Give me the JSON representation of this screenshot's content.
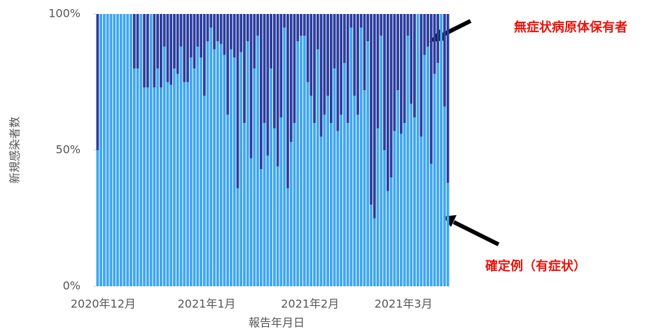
{
  "chart_data": {
    "type": "stacked_bar",
    "x_label": "報告年月日",
    "y_label": "新規感染者数",
    "categories": [
      "2020年12月",
      null,
      null,
      null,
      null,
      null,
      null,
      null,
      null,
      null,
      null,
      null,
      null,
      null,
      null,
      null,
      null,
      null,
      null,
      null,
      null,
      null,
      null,
      null,
      null,
      null,
      null,
      null,
      null,
      null,
      null,
      "2021年1月",
      null,
      null,
      null,
      null,
      null,
      null,
      null,
      null,
      null,
      null,
      null,
      null,
      null,
      null,
      null,
      null,
      null,
      null,
      null,
      null,
      null,
      null,
      null,
      null,
      null,
      null,
      null,
      null,
      null,
      null,
      "2021年2月",
      null,
      null,
      null,
      null,
      null,
      null,
      null,
      null,
      null,
      null,
      null,
      null,
      null,
      null,
      null,
      null,
      null,
      null,
      null,
      null,
      null,
      null,
      null,
      null,
      null,
      null,
      null,
      "2021年3月",
      null,
      null,
      null,
      null,
      null,
      null,
      null,
      null,
      null,
      null,
      null,
      null,
      null,
      null,
      null
    ],
    "series": [
      {
        "name": "確定例（有症状）",
        "color": "#3ea6f0",
        "values": [
          50,
          100,
          100,
          100,
          100,
          100,
          100,
          100,
          100,
          100,
          100,
          80,
          80,
          100,
          73,
          73,
          100,
          73,
          80,
          73,
          88,
          75,
          74,
          80,
          78,
          88,
          75,
          75,
          84,
          80,
          88,
          84,
          70,
          90,
          95,
          87,
          90,
          89,
          85,
          63,
          87,
          84,
          36,
          86,
          60,
          90,
          47,
          80,
          92,
          43,
          60,
          48,
          80,
          58,
          44,
          62,
          95,
          36,
          53,
          60,
          90,
          92,
          92,
          75,
          70,
          60,
          87,
          55,
          63,
          70,
          60,
          80,
          57,
          63,
          82,
          60,
          95,
          70,
          63,
          95,
          72,
          90,
          30,
          25,
          58,
          92,
          50,
          35,
          40,
          57,
          72,
          56,
          60,
          92,
          67,
          62,
          100,
          55,
          85,
          88,
          45,
          78,
          82,
          100,
          66,
          38
        ]
      },
      {
        "name": "無症状病原体保有者",
        "color": "#2a3d9f",
        "values": [
          50,
          0,
          0,
          0,
          0,
          0,
          0,
          0,
          0,
          0,
          0,
          20,
          20,
          0,
          27,
          27,
          0,
          27,
          20,
          27,
          12,
          25,
          26,
          20,
          22,
          12,
          25,
          25,
          16,
          20,
          12,
          16,
          30,
          10,
          5,
          13,
          10,
          11,
          15,
          37,
          13,
          16,
          64,
          14,
          40,
          10,
          53,
          20,
          8,
          57,
          40,
          52,
          20,
          42,
          56,
          38,
          5,
          64,
          47,
          40,
          10,
          8,
          8,
          25,
          30,
          40,
          13,
          45,
          37,
          30,
          40,
          20,
          43,
          37,
          18,
          40,
          5,
          30,
          37,
          5,
          28,
          10,
          70,
          75,
          42,
          8,
          50,
          65,
          60,
          43,
          28,
          44,
          40,
          8,
          33,
          38,
          0,
          45,
          15,
          12,
          55,
          22,
          18,
          0,
          34,
          62
        ]
      }
    ],
    "ylim": [
      0,
      100
    ],
    "yticks": [
      {
        "value": 0,
        "label": "0%"
      },
      {
        "value": 50,
        "label": "50%"
      },
      {
        "value": 100,
        "label": "100%"
      }
    ]
  }
}
